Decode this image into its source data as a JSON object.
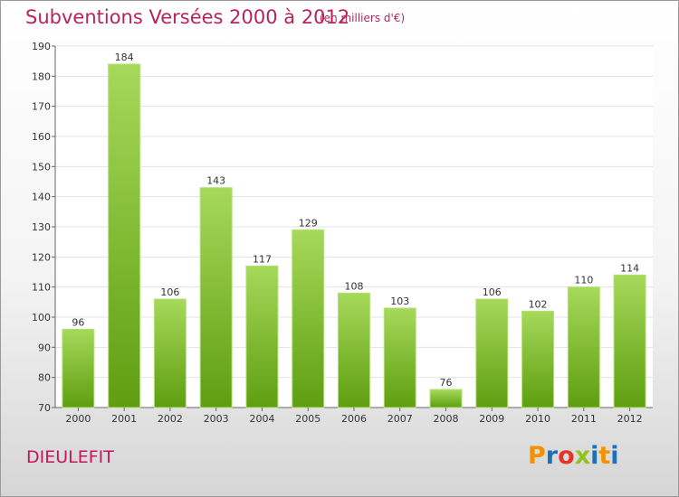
{
  "title": "Subventions Versées 2000 à 2012",
  "subtitle": "(en milliers d'€)",
  "commune": "DIEULEFIT",
  "logo": {
    "text": "Proxiti",
    "letters": [
      "P",
      "r",
      "o",
      "x",
      "i",
      "t",
      "i"
    ],
    "colors": [
      "#f39200",
      "#1d71b8",
      "#e6332a",
      "#95c11f",
      "#1d71b8",
      "#f39200",
      "#1d71b8"
    ]
  },
  "colors": {
    "title": "#b8245a",
    "bar_light": "#a6d95a",
    "bar_dark": "#5e9e10",
    "grid": "#e3e3e3",
    "axis": "#666666"
  },
  "chart_data": {
    "type": "bar",
    "title": "Subventions Versées 2000 à 2012",
    "categories": [
      "2000",
      "2001",
      "2002",
      "2003",
      "2004",
      "2005",
      "2006",
      "2007",
      "2008",
      "2009",
      "2010",
      "2011",
      "2012"
    ],
    "values": [
      96,
      184,
      106,
      143,
      117,
      129,
      108,
      103,
      76,
      106,
      102,
      110,
      114
    ],
    "ylim": [
      70,
      190
    ],
    "yticks": [
      70,
      80,
      90,
      100,
      110,
      120,
      130,
      140,
      150,
      160,
      170,
      180,
      190
    ],
    "grid": true,
    "xlabel": "",
    "ylabel": ""
  }
}
